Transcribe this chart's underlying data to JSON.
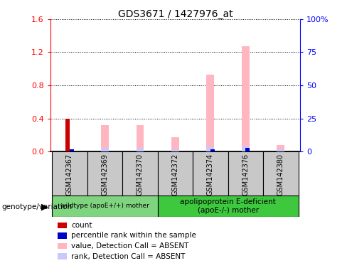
{
  "title": "GDS3671 / 1427976_at",
  "samples": [
    "GSM142367",
    "GSM142369",
    "GSM142370",
    "GSM142372",
    "GSM142374",
    "GSM142376",
    "GSM142380"
  ],
  "count_values": [
    0.4,
    0,
    0,
    0,
    0,
    0,
    0
  ],
  "percentile_rank_values": [
    0.03,
    0,
    0,
    0,
    0.03,
    0.04,
    0
  ],
  "value_absent": [
    0,
    0.32,
    0.32,
    0.17,
    0.93,
    1.27,
    0.08
  ],
  "rank_absent": [
    0,
    0.04,
    0.04,
    0.03,
    0.05,
    0.06,
    0.03
  ],
  "group1_samples": [
    0,
    1,
    2
  ],
  "group2_samples": [
    3,
    4,
    5,
    6
  ],
  "group1_label": "wildtype (apoE+/+) mother",
  "group2_label": "apolipoprotein E-deficient\n(apoE-/-) mother",
  "group1_color": "#7FD47F",
  "group2_color": "#3EC83E",
  "left_ylim": [
    0,
    1.6
  ],
  "right_ylim": [
    0,
    100
  ],
  "left_yticks": [
    0,
    0.4,
    0.8,
    1.2,
    1.6
  ],
  "right_yticks": [
    0,
    25,
    50,
    75,
    100
  ],
  "right_yticklabels": [
    "0",
    "25",
    "50",
    "75",
    "100%"
  ],
  "color_count": "#cc0000",
  "color_rank": "#0000cc",
  "color_value_absent": "#FFB6C1",
  "color_rank_absent": "#C8C8FF",
  "thin_bar_width": 0.12,
  "wide_bar_width": 0.22,
  "legend_items": [
    {
      "color": "#cc0000",
      "label": "count"
    },
    {
      "color": "#0000cc",
      "label": "percentile rank within the sample"
    },
    {
      "color": "#FFB6C1",
      "label": "value, Detection Call = ABSENT"
    },
    {
      "color": "#C8C8FF",
      "label": "rank, Detection Call = ABSENT"
    }
  ],
  "genotype_label": "genotype/variation",
  "subplot_bg": "#c8c8c8"
}
